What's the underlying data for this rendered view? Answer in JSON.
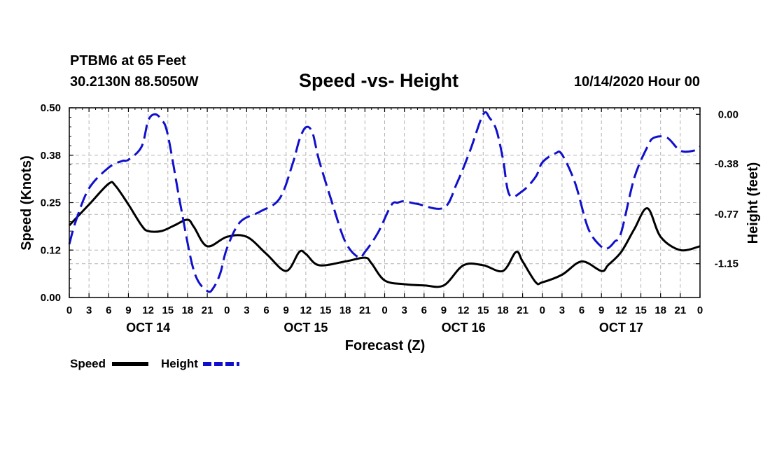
{
  "header": {
    "station": "PTBM6 at 65 Feet",
    "coords": "30.2130N 88.5050W",
    "title": "Speed -vs- Height",
    "datetime": "10/14/2020 Hour 00"
  },
  "colors": {
    "speed": "#000000",
    "height": "#1010cc",
    "grid": "#b4b4b4"
  },
  "chart_data": {
    "type": "line",
    "title": "Speed -vs- Height",
    "xlabel": "Forecast (Z)",
    "ylabel": "Speed (Knots)",
    "y2label": "Height (feet)",
    "x_range": [
      0,
      96
    ],
    "ylim": [
      0,
      0.5
    ],
    "y2lim": [
      -1.41,
      0.05
    ],
    "y_ticks": [
      "0.00",
      "0.12",
      "0.25",
      "0.38",
      "0.50"
    ],
    "y_tick_values": [
      0,
      0.125,
      0.25,
      0.375,
      0.5
    ],
    "y2_ticks": [
      "0.00",
      "-0.38",
      "-0.77",
      "-1.15"
    ],
    "y2_tick_values": [
      0,
      -0.38,
      -0.77,
      -1.15
    ],
    "x_ticks": [
      "0",
      "3",
      "6",
      "9",
      "12",
      "15",
      "18",
      "21",
      "0",
      "3",
      "6",
      "9",
      "12",
      "15",
      "18",
      "21",
      "0",
      "3",
      "6",
      "9",
      "12",
      "15",
      "18",
      "21",
      "0",
      "3",
      "6",
      "9",
      "12",
      "15",
      "18",
      "21",
      "0"
    ],
    "days": [
      {
        "label": "OCT 14",
        "hour": 12
      },
      {
        "label": "OCT 15",
        "hour": 36
      },
      {
        "label": "OCT 16",
        "hour": 60
      },
      {
        "label": "OCT 17",
        "hour": 84
      }
    ],
    "grid": true,
    "series": [
      {
        "name": "Speed",
        "axis": "left",
        "style": "solid",
        "x": [
          0,
          3,
          6,
          7,
          9,
          11,
          12,
          14,
          16,
          18,
          19,
          21,
          24,
          27,
          30,
          33,
          35,
          36,
          38,
          42,
          45,
          46,
          48,
          51,
          54,
          57,
          60,
          63,
          66,
          68,
          69,
          71,
          72,
          75,
          78,
          81,
          82,
          84,
          86,
          88,
          90,
          93,
          96
        ],
        "values": [
          0.19,
          0.245,
          0.3,
          0.295,
          0.245,
          0.19,
          0.175,
          0.175,
          0.19,
          0.205,
          0.185,
          0.135,
          0.16,
          0.16,
          0.115,
          0.07,
          0.12,
          0.115,
          0.085,
          0.095,
          0.105,
          0.09,
          0.045,
          0.035,
          0.032,
          0.032,
          0.085,
          0.085,
          0.07,
          0.12,
          0.095,
          0.04,
          0.04,
          0.06,
          0.095,
          0.07,
          0.085,
          0.12,
          0.18,
          0.235,
          0.16,
          0.125,
          0.135
        ]
      },
      {
        "name": "Height",
        "axis": "right",
        "style": "dashed",
        "x": [
          0,
          1,
          3,
          6,
          8,
          9,
          11,
          12,
          13,
          14,
          15,
          17,
          19,
          21,
          22,
          23,
          24,
          26,
          29,
          32,
          34,
          35,
          36,
          37,
          38,
          40,
          42,
          44,
          45,
          47,
          49,
          50,
          51,
          53,
          57,
          59,
          61,
          63,
          64,
          65,
          66,
          67,
          69,
          71,
          72,
          74,
          75,
          77,
          79,
          81,
          82,
          83,
          84,
          86,
          88,
          89,
          91,
          93,
          95,
          96
        ],
        "values": [
          -1.0,
          -0.82,
          -0.57,
          -0.41,
          -0.36,
          -0.35,
          -0.25,
          -0.05,
          0.0,
          -0.04,
          -0.16,
          -0.72,
          -1.21,
          -1.36,
          -1.33,
          -1.22,
          -1.03,
          -0.83,
          -0.75,
          -0.65,
          -0.38,
          -0.2,
          -0.1,
          -0.14,
          -0.35,
          -0.68,
          -0.98,
          -1.1,
          -1.06,
          -0.91,
          -0.7,
          -0.68,
          -0.67,
          -0.69,
          -0.72,
          -0.53,
          -0.28,
          0.0,
          -0.03,
          -0.12,
          -0.34,
          -0.62,
          -0.59,
          -0.48,
          -0.37,
          -0.3,
          -0.31,
          -0.53,
          -0.88,
          -1.02,
          -1.03,
          -0.98,
          -0.91,
          -0.49,
          -0.25,
          -0.18,
          -0.18,
          -0.28,
          -0.28,
          -0.25
        ]
      }
    ],
    "legend": [
      {
        "label": "Speed",
        "style": "solid"
      },
      {
        "label": "Height",
        "style": "dashed"
      }
    ]
  }
}
